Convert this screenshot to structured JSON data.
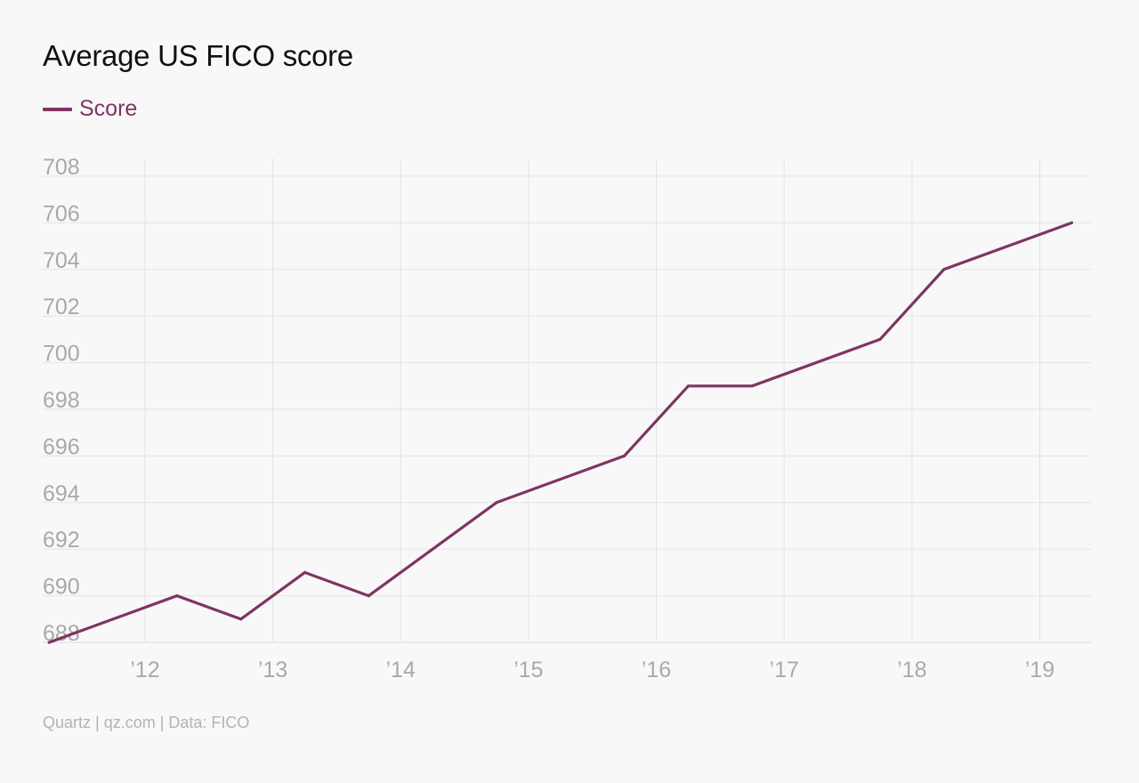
{
  "title": "Average US FICO score",
  "source": "Quartz | qz.com | Data: FICO",
  "colors": {
    "series": "#7e3562",
    "grid": "#e4e4e4",
    "tick": "#a9a9a9",
    "background": "#f8f8f8"
  },
  "chart_data": {
    "type": "line",
    "title": "Average US FICO score",
    "xlabel": "",
    "ylabel": "",
    "ylim": [
      688,
      708
    ],
    "xlim": [
      2011.2,
      2019.4
    ],
    "grid": true,
    "legend_position": "top-left",
    "yticks": [
      688,
      690,
      692,
      694,
      696,
      698,
      700,
      702,
      704,
      706,
      708
    ],
    "ytick_labels": [
      "688",
      "690",
      "692",
      "694",
      "696",
      "698",
      "700",
      "702",
      "704",
      "706",
      "708"
    ],
    "xticks": [
      2012,
      2013,
      2014,
      2015,
      2016,
      2017,
      2018,
      2019
    ],
    "xtick_labels": [
      "’12",
      "’13",
      "’14",
      "’15",
      "’16",
      "’17",
      "’18",
      "’19"
    ],
    "series": [
      {
        "name": "Score",
        "color": "#7e3562",
        "x": [
          "2011-04",
          "2012-04",
          "2012-10",
          "2013-04",
          "2013-10",
          "2014-10",
          "2015-10",
          "2016-04",
          "2016-10",
          "2017-10",
          "2018-04",
          "2019-04"
        ],
        "values": [
          688,
          690,
          689,
          691,
          690,
          694,
          696,
          699,
          699,
          701,
          704,
          706
        ]
      }
    ]
  }
}
